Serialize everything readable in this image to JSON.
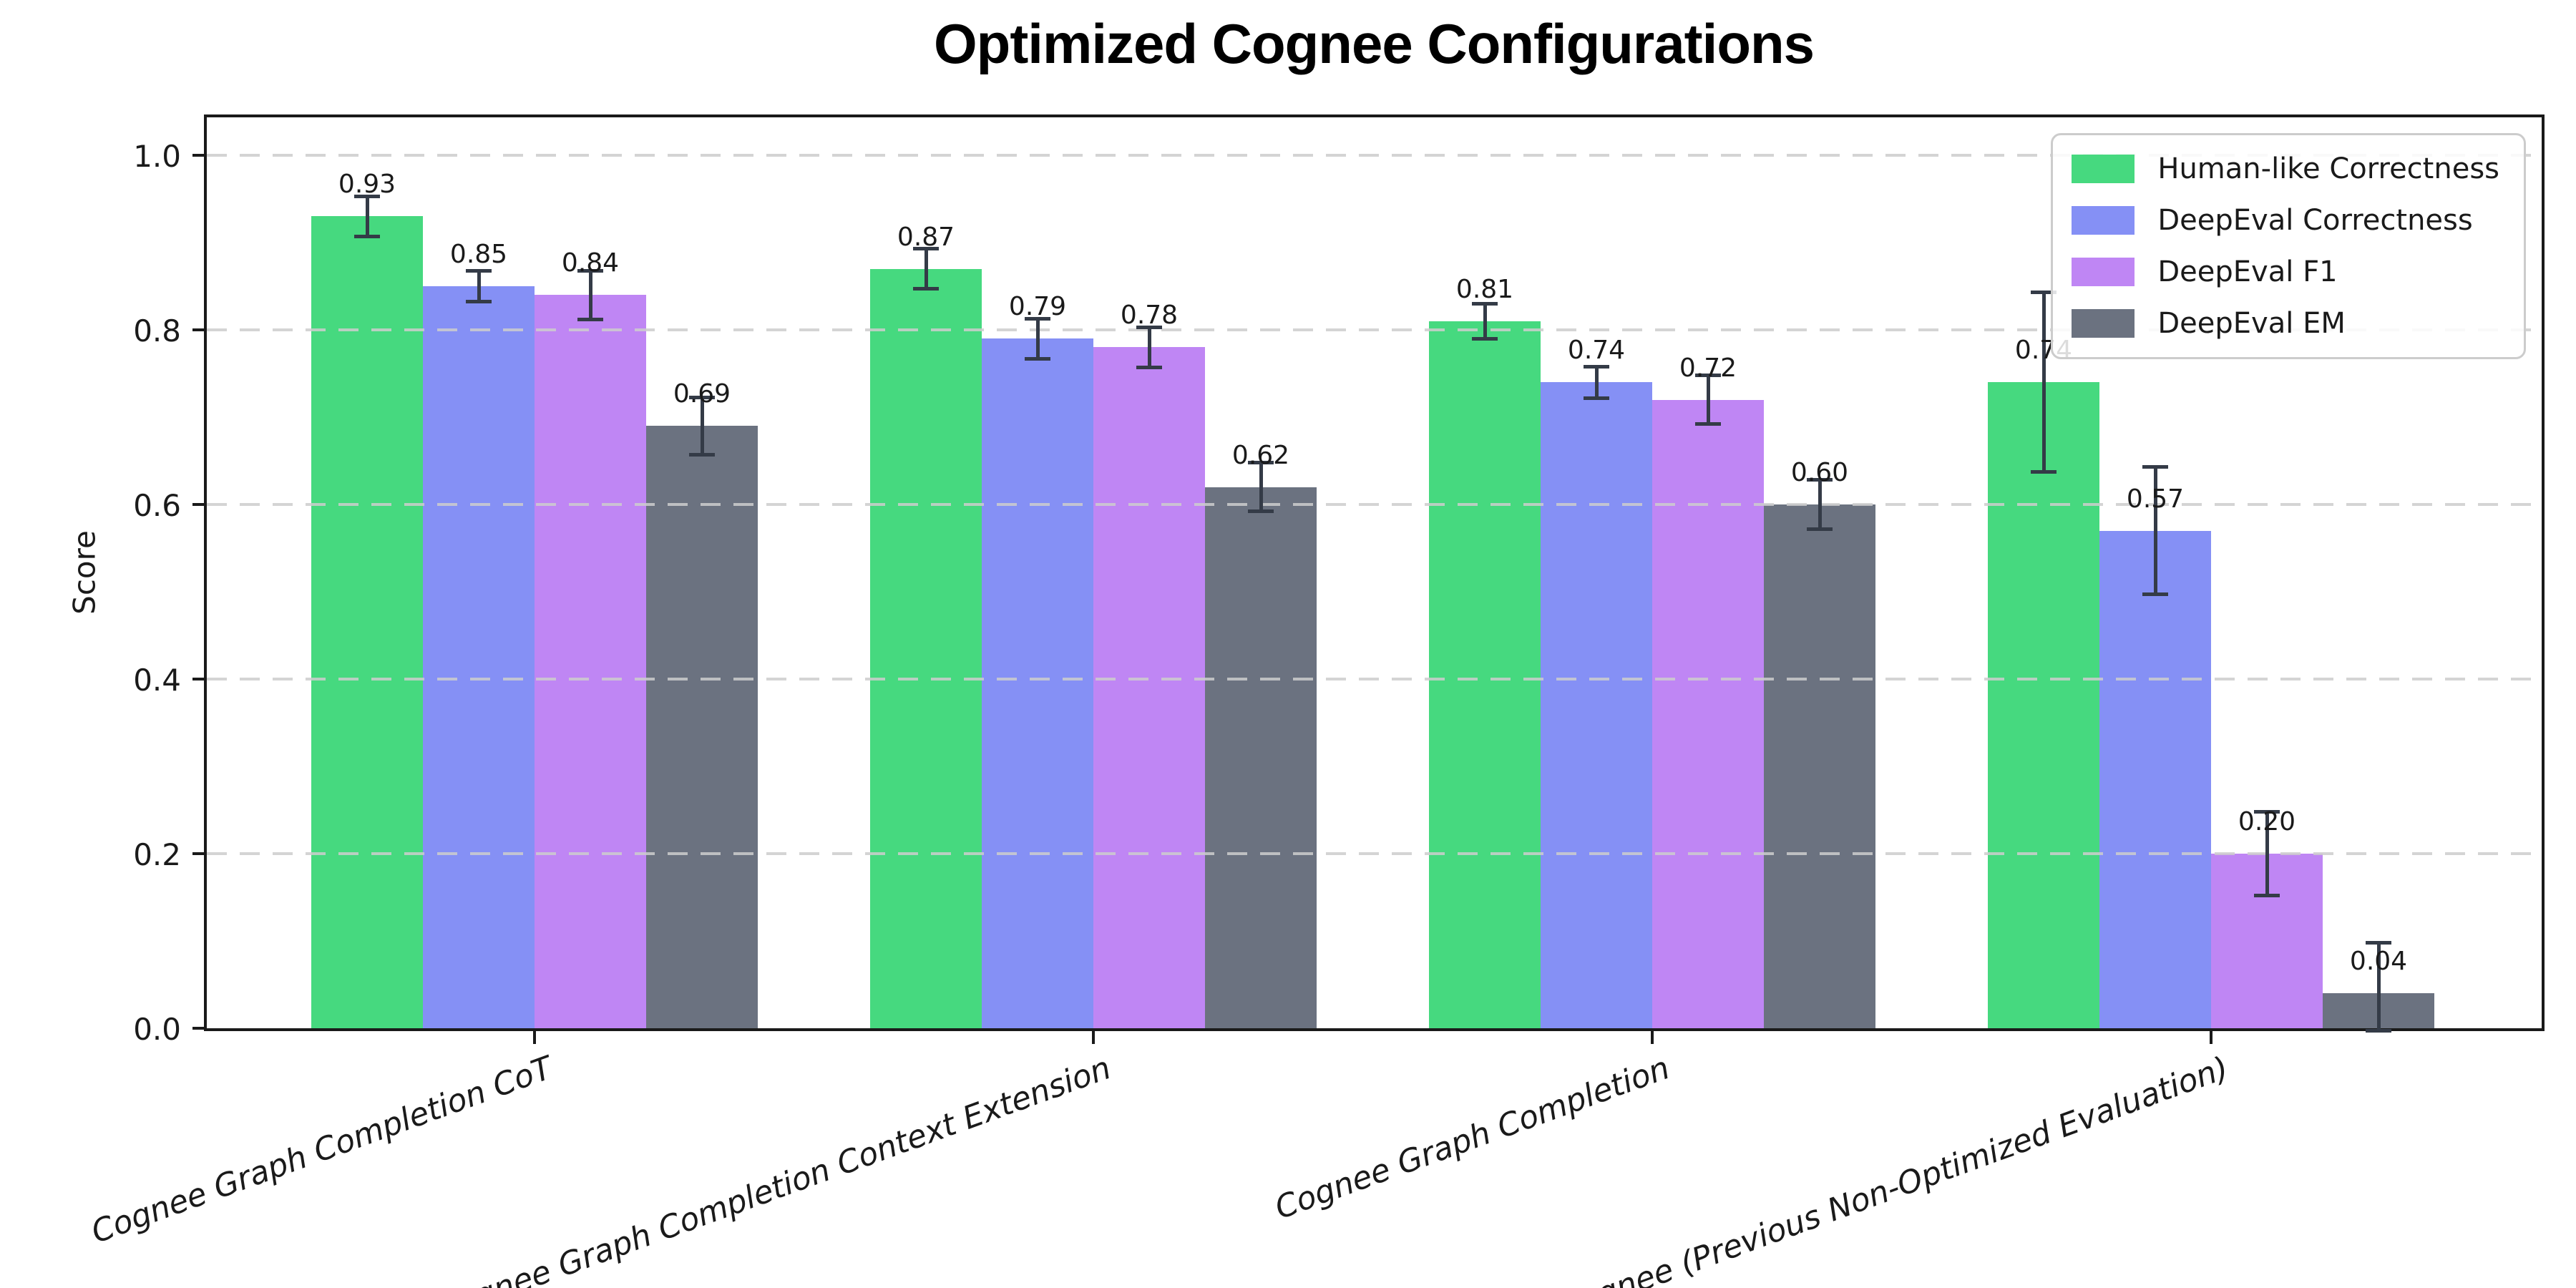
{
  "chart_data": {
    "type": "bar",
    "title": "Optimized Cognee Configurations",
    "ylabel": "Score",
    "xlabel": "",
    "ylim": [
      0,
      1.05
    ],
    "yticks": [
      "0.0",
      "0.2",
      "0.4",
      "0.6",
      "0.8",
      "1.0"
    ],
    "grid": "dashed horizontal gridlines at each 0.2 step",
    "legend_position": "upper right",
    "categories": [
      "Cognee Graph Completion CoT",
      "Cognee Graph Completion Context Extension",
      "Cognee Graph Completion",
      "Cognee (Previous Non-Optimized Evaluation)"
    ],
    "series": [
      {
        "name": "Human-like Correctness",
        "color": "#46d97f",
        "values": [
          0.93,
          0.87,
          0.81,
          0.74
        ],
        "errors": [
          0.025,
          0.025,
          0.022,
          0.105
        ],
        "value_labels": [
          "0.93",
          "0.87",
          "0.81",
          "0.74"
        ]
      },
      {
        "name": "DeepEval Correctness",
        "color": "#8590f5",
        "values": [
          0.85,
          0.79,
          0.74,
          0.57
        ],
        "errors": [
          0.02,
          0.025,
          0.02,
          0.075
        ],
        "value_labels": [
          "0.85",
          "0.79",
          "0.74",
          "0.57"
        ]
      },
      {
        "name": "DeepEval F1",
        "color": "#bf86f4",
        "values": [
          0.84,
          0.78,
          0.72,
          0.2
        ],
        "errors": [
          0.03,
          0.025,
          0.03,
          0.05
        ],
        "value_labels": [
          "0.84",
          "0.78",
          "0.72",
          "0.20"
        ]
      },
      {
        "name": "DeepEval EM",
        "color": "#6b7280",
        "values": [
          0.69,
          0.62,
          0.6,
          0.04
        ],
        "errors": [
          0.035,
          0.03,
          0.03,
          0.06
        ],
        "value_labels": [
          "0.69",
          "0.62",
          "0.60",
          "0.04"
        ]
      }
    ],
    "error_bar_color": "#343b47"
  }
}
